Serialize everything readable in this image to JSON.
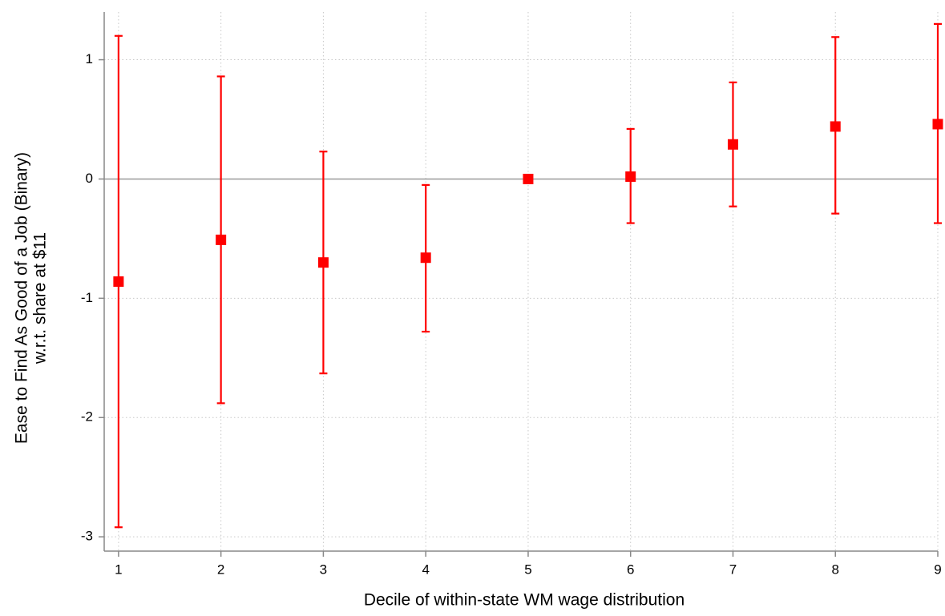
{
  "chart_data": {
    "type": "errorbar",
    "x_label": "Decile of within-state WM wage distribution",
    "y_label": [
      "Ease to Find As Good of a Job (Binary)",
      "w.r.t. share at $11"
    ],
    "x": [
      1,
      2,
      3,
      4,
      5,
      6,
      7,
      8,
      9
    ],
    "series": [
      {
        "color": "#ff0000",
        "values": [
          -0.86,
          -0.51,
          -0.7,
          -0.66,
          0,
          0.02,
          0.29,
          0.44,
          0.46
        ],
        "lower": [
          -2.92,
          -1.88,
          -1.63,
          -1.28,
          0,
          -0.37,
          -0.23,
          -0.29,
          -0.37
        ],
        "upper": [
          1.2,
          0.86,
          0.23,
          -0.05,
          0,
          0.42,
          0.81,
          1.19,
          1.3
        ]
      }
    ],
    "xlim": [
      0.86,
      9
    ],
    "xticks": [
      1,
      2,
      3,
      4,
      5,
      6,
      7,
      8,
      9
    ],
    "ylim": [
      -3.12,
      1.4
    ],
    "yticks": [
      -3,
      -2,
      -1,
      0,
      1
    ],
    "grid": true,
    "zero_line": true
  }
}
